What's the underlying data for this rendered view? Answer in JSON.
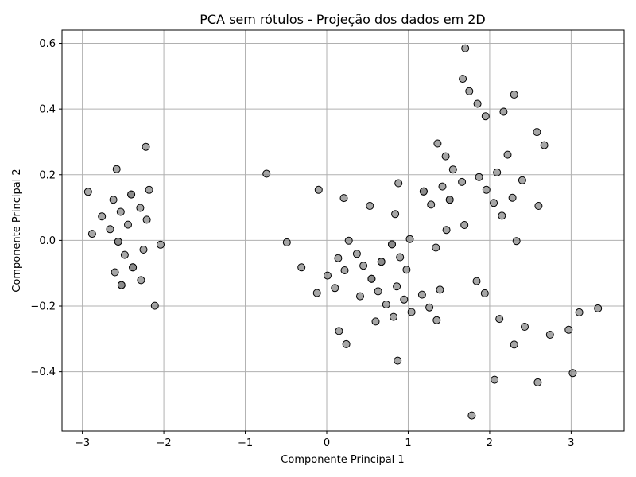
{
  "chart_data": {
    "type": "scatter",
    "title": "PCA sem rótulos - Projeção dos dados em 2D",
    "xlabel": "Componente Principal 1",
    "ylabel": "Componente Principal 2",
    "xlim": [
      -3.25,
      3.65
    ],
    "ylim": [
      -0.58,
      0.64
    ],
    "xticks": [
      -3,
      -2,
      -1,
      0,
      1,
      2,
      3
    ],
    "xtick_labels": [
      "−3",
      "−2",
      "−1",
      "0",
      "1",
      "2",
      "3"
    ],
    "yticks": [
      -0.4,
      -0.2,
      0.0,
      0.2,
      0.4,
      0.6
    ],
    "ytick_labels": [
      "−0.4",
      "−0.2",
      "0.0",
      "0.2",
      "0.4",
      "0.6"
    ],
    "grid": true,
    "marker_color": "#808080",
    "marker_edge": "#000000",
    "points": [
      {
        "x": -2.93,
        "y": 0.148
      },
      {
        "x": -2.88,
        "y": 0.02
      },
      {
        "x": -2.76,
        "y": 0.073
      },
      {
        "x": -2.66,
        "y": 0.034
      },
      {
        "x": -2.62,
        "y": 0.124
      },
      {
        "x": -2.58,
        "y": 0.217
      },
      {
        "x": -2.56,
        "y": -0.004
      },
      {
        "x": -2.53,
        "y": 0.087
      },
      {
        "x": -2.52,
        "y": -0.136
      },
      {
        "x": -2.48,
        "y": -0.044
      },
      {
        "x": -2.44,
        "y": 0.048
      },
      {
        "x": -2.4,
        "y": 0.14
      },
      {
        "x": -2.38,
        "y": -0.082
      },
      {
        "x": -2.6,
        "y": -0.097
      },
      {
        "x": -2.29,
        "y": 0.099
      },
      {
        "x": -2.28,
        "y": -0.121
      },
      {
        "x": -2.25,
        "y": -0.028
      },
      {
        "x": -2.22,
        "y": 0.285
      },
      {
        "x": -2.21,
        "y": 0.063
      },
      {
        "x": -2.18,
        "y": 0.154
      },
      {
        "x": -2.11,
        "y": -0.199
      },
      {
        "x": -2.04,
        "y": -0.013
      },
      {
        "x": -0.74,
        "y": 0.203
      },
      {
        "x": -0.49,
        "y": -0.006
      },
      {
        "x": -0.31,
        "y": -0.082
      },
      {
        "x": -0.12,
        "y": -0.16
      },
      {
        "x": -0.1,
        "y": 0.154
      },
      {
        "x": 0.01,
        "y": -0.107
      },
      {
        "x": 0.1,
        "y": -0.145
      },
      {
        "x": 0.14,
        "y": -0.054
      },
      {
        "x": 0.15,
        "y": -0.276
      },
      {
        "x": 0.21,
        "y": 0.129
      },
      {
        "x": 0.22,
        "y": -0.091
      },
      {
        "x": 0.24,
        "y": -0.316
      },
      {
        "x": 0.27,
        "y": -0.001
      },
      {
        "x": 0.37,
        "y": -0.041
      },
      {
        "x": 0.41,
        "y": -0.17
      },
      {
        "x": 0.45,
        "y": -0.077
      },
      {
        "x": 0.53,
        "y": 0.105
      },
      {
        "x": 0.55,
        "y": -0.117
      },
      {
        "x": 0.6,
        "y": -0.247
      },
      {
        "x": 0.63,
        "y": -0.155
      },
      {
        "x": 0.67,
        "y": -0.065
      },
      {
        "x": 0.73,
        "y": -0.195
      },
      {
        "x": 0.8,
        "y": -0.012
      },
      {
        "x": 0.82,
        "y": -0.233
      },
      {
        "x": 0.84,
        "y": 0.08
      },
      {
        "x": 0.86,
        "y": -0.14
      },
      {
        "x": 0.87,
        "y": -0.366
      },
      {
        "x": 0.88,
        "y": 0.174
      },
      {
        "x": 0.9,
        "y": -0.051
      },
      {
        "x": 0.95,
        "y": -0.18
      },
      {
        "x": 0.98,
        "y": -0.089
      },
      {
        "x": 1.02,
        "y": 0.004
      },
      {
        "x": 1.04,
        "y": -0.218
      },
      {
        "x": 1.17,
        "y": -0.165
      },
      {
        "x": 1.19,
        "y": 0.149
      },
      {
        "x": 1.26,
        "y": -0.204
      },
      {
        "x": 1.28,
        "y": 0.109
      },
      {
        "x": 1.34,
        "y": -0.022
      },
      {
        "x": 1.35,
        "y": -0.243
      },
      {
        "x": 1.36,
        "y": 0.295
      },
      {
        "x": 1.39,
        "y": -0.15
      },
      {
        "x": 1.42,
        "y": 0.164
      },
      {
        "x": 1.46,
        "y": 0.256
      },
      {
        "x": 1.47,
        "y": 0.032
      },
      {
        "x": 1.51,
        "y": 0.124
      },
      {
        "x": 1.55,
        "y": 0.216
      },
      {
        "x": 1.66,
        "y": 0.178
      },
      {
        "x": 1.67,
        "y": 0.492
      },
      {
        "x": 1.69,
        "y": 0.047
      },
      {
        "x": 1.7,
        "y": 0.585
      },
      {
        "x": 1.75,
        "y": 0.454
      },
      {
        "x": 1.78,
        "y": -0.533
      },
      {
        "x": 1.84,
        "y": -0.124
      },
      {
        "x": 1.85,
        "y": 0.416
      },
      {
        "x": 1.87,
        "y": 0.193
      },
      {
        "x": 1.94,
        "y": -0.161
      },
      {
        "x": 1.95,
        "y": 0.378
      },
      {
        "x": 1.96,
        "y": 0.154
      },
      {
        "x": 2.05,
        "y": 0.114
      },
      {
        "x": 2.06,
        "y": -0.424
      },
      {
        "x": 2.09,
        "y": 0.207
      },
      {
        "x": 2.12,
        "y": -0.239
      },
      {
        "x": 2.15,
        "y": 0.075
      },
      {
        "x": 2.17,
        "y": 0.392
      },
      {
        "x": 2.22,
        "y": 0.261
      },
      {
        "x": 2.28,
        "y": 0.13
      },
      {
        "x": 2.3,
        "y": 0.444
      },
      {
        "x": 2.3,
        "y": -0.317
      },
      {
        "x": 2.33,
        "y": -0.002
      },
      {
        "x": 2.4,
        "y": 0.183
      },
      {
        "x": 2.43,
        "y": -0.263
      },
      {
        "x": 2.58,
        "y": 0.33
      },
      {
        "x": 2.59,
        "y": -0.432
      },
      {
        "x": 2.6,
        "y": 0.105
      },
      {
        "x": 2.67,
        "y": 0.29
      },
      {
        "x": 2.74,
        "y": -0.287
      },
      {
        "x": 2.97,
        "y": -0.272
      },
      {
        "x": 3.02,
        "y": -0.404
      },
      {
        "x": 3.1,
        "y": -0.219
      },
      {
        "x": 3.33,
        "y": -0.207
      },
      {
        "x": -2.56,
        "y": -0.004
      },
      {
        "x": -2.4,
        "y": 0.14
      },
      {
        "x": -2.38,
        "y": -0.082
      },
      {
        "x": -2.52,
        "y": -0.136
      },
      {
        "x": 0.8,
        "y": -0.012
      },
      {
        "x": 1.19,
        "y": 0.149
      },
      {
        "x": 1.51,
        "y": 0.124
      },
      {
        "x": 0.55,
        "y": -0.117
      },
      {
        "x": 0.67,
        "y": -0.065
      }
    ]
  }
}
